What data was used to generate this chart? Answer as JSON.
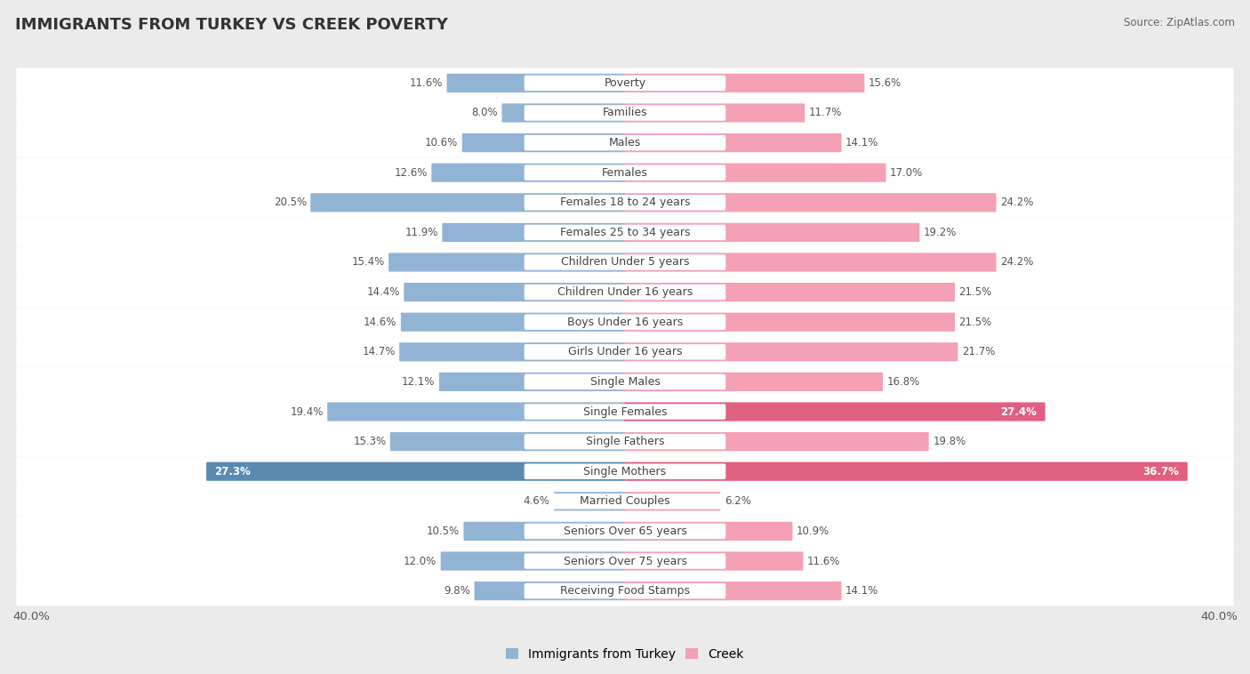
{
  "title": "IMMIGRANTS FROM TURKEY VS CREEK POVERTY",
  "source": "Source: ZipAtlas.com",
  "categories": [
    "Poverty",
    "Families",
    "Males",
    "Females",
    "Females 18 to 24 years",
    "Females 25 to 34 years",
    "Children Under 5 years",
    "Children Under 16 years",
    "Boys Under 16 years",
    "Girls Under 16 years",
    "Single Males",
    "Single Females",
    "Single Fathers",
    "Single Mothers",
    "Married Couples",
    "Seniors Over 65 years",
    "Seniors Over 75 years",
    "Receiving Food Stamps"
  ],
  "left_values": [
    11.6,
    8.0,
    10.6,
    12.6,
    20.5,
    11.9,
    15.4,
    14.4,
    14.6,
    14.7,
    12.1,
    19.4,
    15.3,
    27.3,
    4.6,
    10.5,
    12.0,
    9.8
  ],
  "right_values": [
    15.6,
    11.7,
    14.1,
    17.0,
    24.2,
    19.2,
    24.2,
    21.5,
    21.5,
    21.7,
    16.8,
    27.4,
    19.8,
    36.7,
    6.2,
    10.9,
    11.6,
    14.1
  ],
  "left_color": "#92b4d4",
  "right_color": "#f4a0b5",
  "left_label": "Immigrants from Turkey",
  "right_label": "Creek",
  "bg_color": "#ebebeb",
  "bar_bg_color": "#ffffff",
  "axis_limit": 40.0,
  "label_fontsize": 9.0,
  "value_fontsize": 8.5,
  "title_fontsize": 13,
  "highlight_left_color": "#5a8ab0",
  "highlight_right_color": "#e06080",
  "highlight_threshold": 25.0
}
